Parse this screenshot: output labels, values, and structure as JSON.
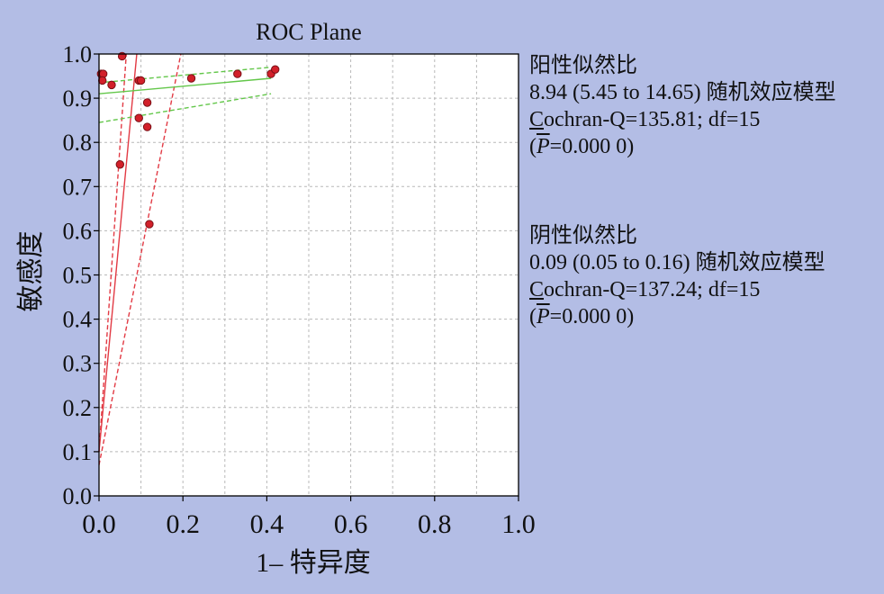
{
  "colors": {
    "background": "#b3bde5",
    "plot_bg": "#ffffff",
    "grid": "#b8b8b8",
    "points": "#d2202a",
    "positive_lr_line": "#e23a44",
    "negative_lr_line": "#63c74a"
  },
  "stats": {
    "positive": {
      "title": "阳性似然比",
      "estimate": "8.94 (5.45 to 14.65) 随机效应模型",
      "q_prefix": "C",
      "q_rest": "ochran-Q=135.81; df=15",
      "p_open": "(",
      "p_letter": "P",
      "p_rest": "=0.000 0)"
    },
    "negative": {
      "title": "阴性似然比",
      "estimate": "0.09 (0.05 to 0.16) 随机效应模型",
      "q_prefix": "C",
      "q_rest": "ochran-Q=137.24; df=15",
      "p_open": "(",
      "p_letter": "P",
      "p_rest": "=0.000 0)"
    }
  },
  "chart_data": {
    "type": "scatter",
    "title": "ROC Plane",
    "xlabel": "1– 特异度",
    "ylabel": "敏感度",
    "xlim": [
      0,
      1
    ],
    "ylim": [
      0,
      1
    ],
    "x_ticks": [
      "0.0",
      "0.2",
      "0.4",
      "0.6",
      "0.8",
      "1.0"
    ],
    "y_ticks": [
      "0.0",
      "0.1",
      "0.2",
      "0.3",
      "0.4",
      "0.5",
      "0.6",
      "0.7",
      "0.8",
      "0.9",
      "1.0"
    ],
    "grid": true,
    "points": [
      {
        "x": 0.005,
        "y": 0.955
      },
      {
        "x": 0.01,
        "y": 0.955
      },
      {
        "x": 0.008,
        "y": 0.94
      },
      {
        "x": 0.03,
        "y": 0.93
      },
      {
        "x": 0.055,
        "y": 0.995
      },
      {
        "x": 0.05,
        "y": 0.75
      },
      {
        "x": 0.095,
        "y": 0.94
      },
      {
        "x": 0.1,
        "y": 0.94
      },
      {
        "x": 0.095,
        "y": 0.855
      },
      {
        "x": 0.115,
        "y": 0.89
      },
      {
        "x": 0.115,
        "y": 0.835
      },
      {
        "x": 0.12,
        "y": 0.615
      },
      {
        "x": 0.22,
        "y": 0.945
      },
      {
        "x": 0.33,
        "y": 0.955
      },
      {
        "x": 0.41,
        "y": 0.955
      },
      {
        "x": 0.42,
        "y": 0.965
      }
    ],
    "lines": [
      {
        "name": "positive_lr_fit",
        "style": "solid",
        "color": "#e23a44",
        "x": [
          0.0,
          0.09
        ],
        "y": [
          0.1,
          1.0
        ]
      },
      {
        "name": "positive_lr_ci_upper",
        "style": "dashed",
        "color": "#e23a44",
        "x": [
          0.0,
          0.065
        ],
        "y": [
          0.1,
          1.0
        ]
      },
      {
        "name": "positive_lr_ci_lower",
        "style": "dashed",
        "color": "#e23a44",
        "x": [
          0.0,
          0.195
        ],
        "y": [
          0.07,
          1.0
        ]
      },
      {
        "name": "negative_lr_fit",
        "style": "solid",
        "color": "#63c74a",
        "x": [
          0.0,
          0.41
        ],
        "y": [
          0.91,
          0.945
        ]
      },
      {
        "name": "negative_lr_ci_upper",
        "style": "dashed",
        "color": "#63c74a",
        "x": [
          0.0,
          0.41
        ],
        "y": [
          0.935,
          0.97
        ]
      },
      {
        "name": "negative_lr_ci_lower",
        "style": "dashed",
        "color": "#63c74a",
        "x": [
          0.0,
          0.41
        ],
        "y": [
          0.845,
          0.91
        ]
      }
    ]
  }
}
